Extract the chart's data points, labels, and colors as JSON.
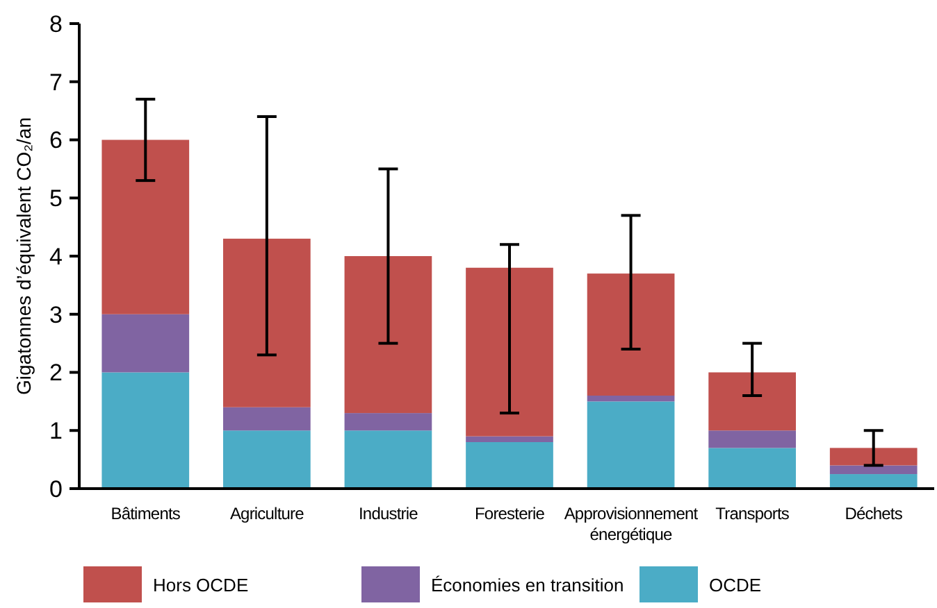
{
  "chart_data": {
    "type": "bar",
    "stacked": true,
    "ylabel": "Gigatonnes d’équivalent CO₂/an",
    "categories": [
      "Bâtiments",
      "Agriculture",
      "Industrie",
      "Foresterie",
      "Approvisionnement énergétique",
      "Transports",
      "Déchets"
    ],
    "series": [
      {
        "name": "OCDE",
        "color": "#4bacc6",
        "values": [
          2.0,
          1.0,
          1.0,
          0.8,
          1.5,
          0.7,
          0.25
        ]
      },
      {
        "name": "Économies en transition",
        "color": "#8064a2",
        "values": [
          1.0,
          0.4,
          0.3,
          0.1,
          0.1,
          0.3,
          0.15
        ]
      },
      {
        "name": "Hors OCDE",
        "color": "#c0504d",
        "values": [
          3.0,
          2.9,
          2.7,
          2.9,
          2.1,
          1.0,
          0.3
        ],
        "errors": [
          [
            5.3,
            6.7
          ],
          [
            2.3,
            6.4
          ],
          [
            2.5,
            5.5
          ],
          [
            1.3,
            4.2
          ],
          [
            2.4,
            4.7
          ],
          [
            1.6,
            2.5
          ],
          [
            0.4,
            1.0
          ]
        ]
      }
    ],
    "ylim": [
      0,
      8
    ],
    "yticks": [
      0,
      1,
      2,
      3,
      4,
      5,
      6,
      7,
      8
    ],
    "grid": false,
    "legend": "bottom"
  }
}
